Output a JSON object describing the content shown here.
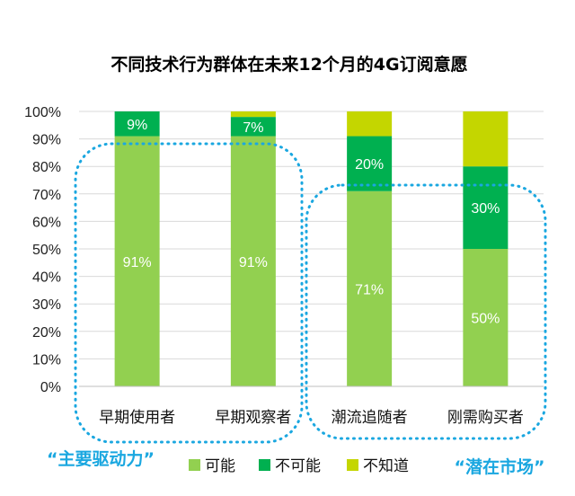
{
  "chart_data": {
    "type": "bar",
    "stacked": true,
    "percent": true,
    "title": "不同技术行为群体在未来12个月的4G订阅意愿",
    "categories": [
      "早期使用者",
      "早期观察者",
      "潮流追随者",
      "刚需购买者"
    ],
    "series": [
      {
        "name": "可能",
        "values": [
          91,
          91,
          71,
          50
        ],
        "color": "#92d050",
        "labels": [
          "91%",
          "91%",
          "71%",
          "50%"
        ]
      },
      {
        "name": "不可能",
        "values": [
          9,
          7,
          20,
          30
        ],
        "color": "#00b050",
        "labels": [
          "9%",
          "7%",
          "20%",
          "30%"
        ]
      },
      {
        "name": "不知道",
        "values": [
          0,
          2,
          9,
          20
        ],
        "color": "#c4d600",
        "labels": [
          "",
          "",
          "",
          ""
        ]
      }
    ],
    "ylim": [
      0,
      100
    ],
    "yticks": [
      "0%",
      "10%",
      "20%",
      "30%",
      "40%",
      "50%",
      "60%",
      "70%",
      "80%",
      "90%",
      "100%"
    ],
    "grid": true,
    "legend": "bottom"
  },
  "annotations": {
    "left_group": "“主要驱动力”",
    "right_group": "“潜在市场”"
  },
  "colors": {
    "callout": "#1aa7e0",
    "grid": "#d9d9d9"
  }
}
